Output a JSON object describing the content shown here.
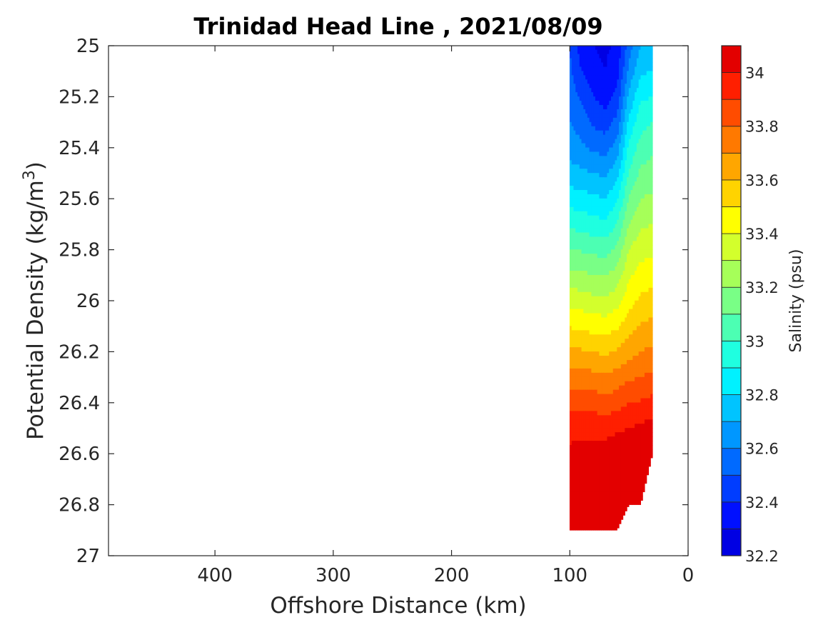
{
  "chart_data": {
    "type": "heatmap",
    "subtype": "filled-contour section",
    "title": "Trinidad Head Line , 2021/08/09",
    "xlabel": "Offshore Distance (km)",
    "ylabel": "Potential Density (kg/m³)",
    "ylabel_base": "Potential Density (kg/m",
    "ylabel_sup": "3",
    "ylabel_end": ")",
    "xlim": [
      490,
      0
    ],
    "x_reversed": true,
    "ylim": [
      25,
      27
    ],
    "y_reversed": true,
    "x_ticks": [
      400,
      300,
      200,
      100,
      0
    ],
    "x_tick_labels": [
      "400",
      "300",
      "200",
      "100",
      "0"
    ],
    "y_ticks": [
      25,
      25.2,
      25.4,
      25.6,
      25.8,
      26,
      26.2,
      26.4,
      26.6,
      26.8,
      27
    ],
    "y_tick_labels": [
      "25",
      "25.2",
      "25.4",
      "25.6",
      "25.8",
      "26",
      "26.2",
      "26.4",
      "26.6",
      "26.8",
      "27"
    ],
    "colorbar": {
      "label": "Salinity (psu)",
      "range": [
        32.2,
        34.1
      ],
      "levels": [
        32.2,
        32.3,
        32.4,
        32.5,
        32.6,
        32.7,
        32.8,
        32.9,
        33.0,
        33.1,
        33.2,
        33.3,
        33.4,
        33.5,
        33.6,
        33.7,
        33.8,
        33.9,
        34.0,
        34.1
      ],
      "tick_values": [
        32.2,
        32.4,
        32.6,
        32.8,
        33,
        33.2,
        33.4,
        33.6,
        33.8,
        34
      ],
      "tick_labels": [
        "32.2",
        "32.4",
        "32.6",
        "32.8",
        "33",
        "33.2",
        "33.4",
        "33.6",
        "33.8",
        "34"
      ],
      "colors": [
        "#000090",
        "#0000b6",
        "#0000e3",
        "#0010ff",
        "#003dff",
        "#006aff",
        "#0097ff",
        "#00c4ff",
        "#00f1ff",
        "#1fffe0",
        "#4cffb3",
        "#79ff86",
        "#a6ff59",
        "#d3ff2c",
        "#ffff00",
        "#ffd300",
        "#ffa600",
        "#ff7900",
        "#ff4c00",
        "#ff1f00",
        "#e30000",
        "#b60000",
        "#800000"
      ]
    },
    "series": [
      {
        "x": [
          100,
          90,
          80,
          70,
          60,
          50,
          40,
          30
        ],
        "density": [
          25.0,
          25.1,
          25.2,
          25.3,
          25.4,
          25.5,
          25.6,
          25.7,
          25.8,
          25.9,
          26.0,
          26.1,
          26.2,
          26.3,
          26.4,
          26.5,
          26.6,
          26.7,
          26.8,
          26.9
        ],
        "bottom_density": [
          26.9,
          26.9,
          26.9,
          26.9,
          26.9,
          26.8,
          26.8,
          26.6
        ],
        "salinity_by_station": [
          [
            32.5,
            32.34,
            32.3,
            32.28,
            32.32,
            32.55,
            32.7,
            32.72
          ],
          [
            32.52,
            32.4,
            32.33,
            32.3,
            32.36,
            32.62,
            32.78,
            32.8
          ],
          [
            32.56,
            32.48,
            32.4,
            32.35,
            32.43,
            32.72,
            32.88,
            32.9
          ],
          [
            32.6,
            32.55,
            32.48,
            32.45,
            32.53,
            32.82,
            32.96,
            33.0
          ],
          [
            32.65,
            32.62,
            32.58,
            32.56,
            32.64,
            32.92,
            33.04,
            33.08
          ],
          [
            32.74,
            32.72,
            32.7,
            32.68,
            32.76,
            33.0,
            33.12,
            33.14
          ],
          [
            32.85,
            32.84,
            32.82,
            32.8,
            32.88,
            33.1,
            33.2,
            33.22
          ],
          [
            32.98,
            32.96,
            32.94,
            32.92,
            33.0,
            33.2,
            33.28,
            33.3
          ],
          [
            33.1,
            33.09,
            33.07,
            33.06,
            33.12,
            33.3,
            33.36,
            33.38
          ],
          [
            33.23,
            33.22,
            33.2,
            33.19,
            33.24,
            33.38,
            33.44,
            33.46
          ],
          [
            33.36,
            33.35,
            33.33,
            33.32,
            33.36,
            33.46,
            33.52,
            33.54
          ],
          [
            33.49,
            33.48,
            33.46,
            33.45,
            33.48,
            33.56,
            33.61,
            33.63
          ],
          [
            33.62,
            33.61,
            33.6,
            33.58,
            33.61,
            33.66,
            33.7,
            33.72
          ],
          [
            33.75,
            33.74,
            33.73,
            33.71,
            33.74,
            33.78,
            33.8,
            33.82
          ],
          [
            33.87,
            33.86,
            33.86,
            33.84,
            33.86,
            33.9,
            33.91,
            33.93
          ],
          [
            33.97,
            33.97,
            33.97,
            33.96,
            33.98,
            34.0,
            34.02,
            34.04
          ],
          [
            34.02,
            34.03,
            34.04,
            34.05,
            34.07,
            34.09,
            34.1,
            34.11
          ],
          [
            34.06,
            34.07,
            34.09,
            34.11,
            34.12,
            34.13,
            34.14,
            34.15
          ],
          [
            34.09,
            34.1,
            34.12,
            34.15,
            34.16,
            34.17,
            34.17,
            34.17
          ],
          [
            34.11,
            34.12,
            34.14,
            34.17,
            34.18,
            34.18,
            34.18,
            34.18
          ]
        ]
      }
    ]
  }
}
